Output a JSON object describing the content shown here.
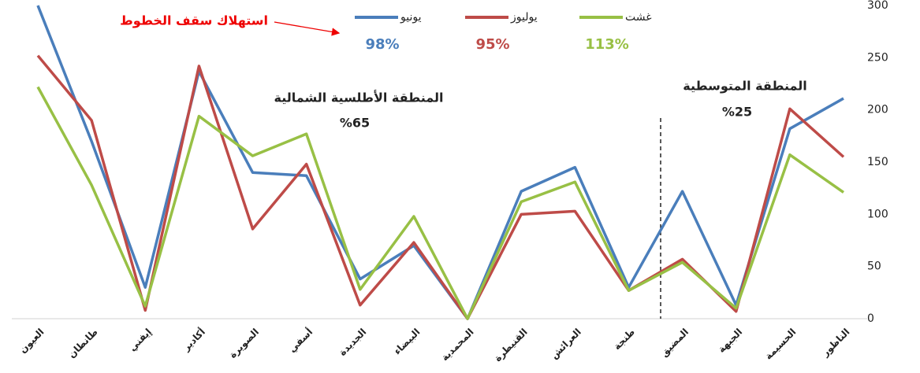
{
  "chart_data": {
    "type": "line",
    "categories": [
      "العيون",
      "طانطان",
      "إيفني",
      "أكادير",
      "الصويرة",
      "أسفي",
      "الجديدة",
      "البيضاء",
      "المحمدية",
      "القنيطرة",
      "العرائش",
      "طنجة",
      "المضيق",
      "الجبهة",
      "الحسيمة",
      "الناظور"
    ],
    "series": [
      {
        "name": "يونيو",
        "color": "#4a7ebb",
        "label": "98%",
        "values": [
          300,
          170,
          30,
          237,
          140,
          137,
          38,
          70,
          0,
          122,
          145,
          30,
          122,
          13,
          182,
          211
        ]
      },
      {
        "name": "يوليوز",
        "color": "#be4b48",
        "label": "95%",
        "values": [
          252,
          190,
          8,
          242,
          86,
          148,
          13,
          73,
          0,
          100,
          103,
          27,
          57,
          7,
          201,
          155
        ]
      },
      {
        "name": "غشت",
        "color": "#98c045",
        "label": "113%",
        "values": [
          222,
          128,
          12,
          194,
          156,
          177,
          28,
          98,
          0,
          112,
          131,
          27,
          54,
          10,
          157,
          121
        ]
      }
    ],
    "ylim": [
      0,
      300
    ],
    "yticks": [
      0,
      50,
      100,
      150,
      200,
      250,
      300
    ],
    "grid": false,
    "annotations": [
      {
        "text": "استهلاك سقف الخطوط"
      },
      {
        "text": "المنطقة الأطلسية الشمالية",
        "value_text": "%65"
      },
      {
        "text": "المنطقة المتوسطية",
        "value_text": "%25"
      }
    ]
  }
}
